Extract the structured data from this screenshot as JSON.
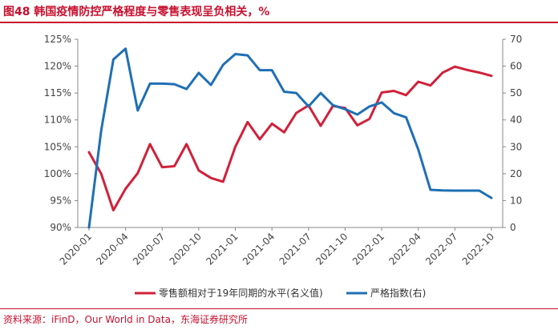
{
  "title": "图48  韩国疫情防控严格程度与零售表现呈负相关，%",
  "source": "资料来源：iFinD，Our World in Data，东海证券研究所",
  "chart_data": {
    "type": "line",
    "x_labels": [
      "2020-01",
      "2020-04",
      "2020-07",
      "2020-10",
      "2021-01",
      "2021-04",
      "2021-07",
      "2021-10",
      "2022-01",
      "2022-04",
      "2022-07",
      "2022-10"
    ],
    "x": [
      "2020-01",
      "2020-02",
      "2020-03",
      "2020-04",
      "2020-05",
      "2020-06",
      "2020-07",
      "2020-08",
      "2020-09",
      "2020-10",
      "2020-11",
      "2020-12",
      "2021-01",
      "2021-02",
      "2021-03",
      "2021-04",
      "2021-05",
      "2021-06",
      "2021-07",
      "2021-08",
      "2021-09",
      "2021-10",
      "2021-11",
      "2021-12",
      "2022-01",
      "2022-02",
      "2022-03",
      "2022-04",
      "2022-05",
      "2022-06",
      "2022-07",
      "2022-08",
      "2022-09",
      "2022-10"
    ],
    "left_axis": {
      "min": 90,
      "max": 125,
      "ticks": [
        "90%",
        "95%",
        "100%",
        "105%",
        "110%",
        "115%",
        "120%",
        "125%"
      ]
    },
    "right_axis": {
      "min": 0,
      "max": 70,
      "ticks": [
        "0",
        "10",
        "20",
        "30",
        "40",
        "50",
        "60",
        "70"
      ]
    },
    "series": [
      {
        "name": "零售额相对于19年同期的水平(名义值)",
        "axis": "left",
        "color": "#d0213a",
        "values": [
          104,
          100,
          93.2,
          97.2,
          100.1,
          105.5,
          101.2,
          101.4,
          105.5,
          100.6,
          99.2,
          98.5,
          105,
          109.6,
          106.4,
          109.3,
          107.7,
          111.3,
          112.7,
          108.9,
          112.6,
          112.2,
          109,
          110.2,
          115.1,
          115.4,
          114.6,
          117.1,
          116.4,
          118.8,
          119.9,
          119.3,
          118.8,
          118.2
        ]
      },
      {
        "name": "严格指数(右)",
        "axis": "right",
        "color": "#1f6fb4",
        "values": [
          0,
          36,
          62.5,
          66.5,
          43.5,
          53.5,
          53.5,
          53.3,
          51.5,
          57.5,
          53,
          60.5,
          64.5,
          64,
          58.5,
          58.5,
          50.5,
          50,
          45,
          50,
          45.5,
          44,
          42,
          45,
          46.5,
          42.5,
          41,
          29,
          14,
          13.8,
          13.7,
          13.7,
          13.7,
          11
        ]
      }
    ]
  }
}
